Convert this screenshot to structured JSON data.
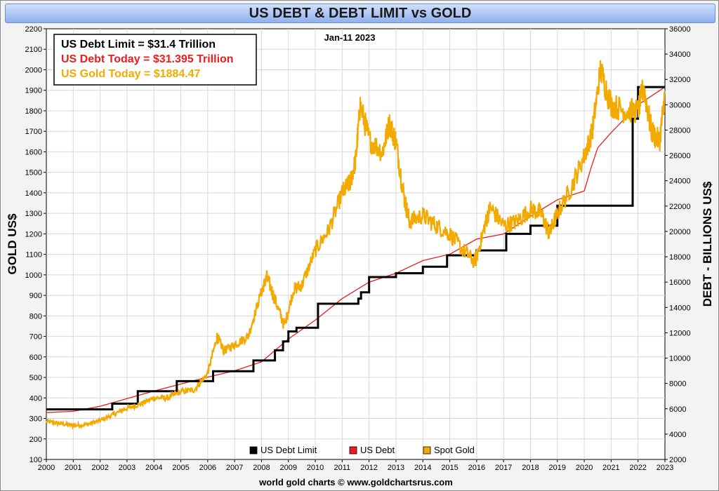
{
  "chart_data": {
    "type": "line",
    "title": "US DEBT & DEBT LIMIT vs GOLD",
    "date_label": "Jan-11  2023",
    "ylabel": "GOLD US$",
    "y2label": "DEBT - BILLIONS US$",
    "footer": "world gold charts © www.goldchartsrus.com",
    "x_ticks": [
      "2000",
      "2001",
      "2002",
      "2003",
      "2004",
      "2005",
      "2006",
      "2007",
      "2008",
      "2009",
      "2010",
      "2011",
      "2012",
      "2013",
      "2014",
      "2015",
      "2016",
      "2017",
      "2018",
      "2019",
      "2020",
      "2021",
      "2022",
      "2023"
    ],
    "y_ticks": [
      100,
      200,
      300,
      400,
      500,
      600,
      700,
      800,
      900,
      1000,
      1100,
      1200,
      1300,
      1400,
      1500,
      1600,
      1700,
      1800,
      1900,
      2000,
      2100,
      2200
    ],
    "y2_ticks": [
      2000,
      4000,
      6000,
      8000,
      10000,
      12000,
      14000,
      16000,
      18000,
      20000,
      22000,
      24000,
      26000,
      28000,
      30000,
      32000,
      34000,
      36000
    ],
    "xlim": [
      2000,
      2023
    ],
    "ylim": [
      100,
      2200
    ],
    "y2lim": [
      2000,
      36000
    ],
    "grid": true,
    "info_box": [
      {
        "text": "US Debt Limit    = $31.4 Trillion",
        "color": "#000000"
      },
      {
        "text": "US Debt Today = $31.395 Trillion",
        "color": "#ee1c1c"
      },
      {
        "text": "US Gold Today = $1884.47",
        "color": "#f2a900"
      }
    ],
    "legend_position": "bottom-right",
    "series": [
      {
        "name": "US Debt Limit",
        "color": "#000000",
        "axis": "right",
        "step": true,
        "x": [
          2000,
          2002.45,
          2003.4,
          2004.85,
          2006.2,
          2007.7,
          2008.5,
          2008.8,
          2009.0,
          2009.3,
          2010.1,
          2011.6,
          2011.7,
          2012.0,
          2013.0,
          2014.0,
          2014.9,
          2016.0,
          2017.1,
          2018.0,
          2019.0,
          2019.7,
          2021.8,
          2022.0,
          2023.0
        ],
        "values": [
          5950,
          6400,
          7384,
          8184,
          8965,
          9815,
          10615,
          11315,
          12104,
          12394,
          14294,
          14694,
          15194,
          16394,
          16699,
          17212,
          18113,
          18500,
          19809,
          20456,
          22030,
          22030,
          28900,
          31400,
          31400
        ]
      },
      {
        "name": "US Debt",
        "color": "#ee1c1c",
        "axis": "right",
        "step": false,
        "x": [
          2000,
          2001,
          2002,
          2003,
          2004,
          2005,
          2006,
          2007,
          2008,
          2009,
          2010,
          2011,
          2012,
          2013,
          2014,
          2015,
          2016,
          2017,
          2018,
          2019,
          2020,
          2020.25,
          2020.5,
          2021,
          2022,
          2023
        ],
        "values": [
          5700,
          5800,
          6200,
          6800,
          7400,
          7950,
          8500,
          9000,
          9700,
          11500,
          13000,
          14700,
          16000,
          16700,
          17700,
          18200,
          19400,
          19800,
          21200,
          22500,
          23200,
          25000,
          26600,
          27800,
          30000,
          31400
        ]
      },
      {
        "name": "Spot Gold",
        "color": "#f2a900",
        "axis": "left",
        "step": false,
        "x": [
          2000,
          2000.5,
          2001,
          2001.5,
          2002,
          2002.5,
          2003,
          2003.5,
          2004,
          2004.5,
          2005,
          2005.5,
          2006,
          2006.35,
          2006.6,
          2007,
          2007.5,
          2008,
          2008.2,
          2008.5,
          2008.85,
          2009.2,
          2009.5,
          2010,
          2010.5,
          2011,
          2011.3,
          2011.5,
          2011.67,
          2012,
          2012.5,
          2012.75,
          2013,
          2013.3,
          2013.5,
          2014,
          2014.5,
          2015,
          2015.5,
          2015.95,
          2016.3,
          2016.5,
          2017,
          2017.5,
          2018,
          2018.4,
          2018.7,
          2019,
          2019.5,
          2020,
          2020.3,
          2020.6,
          2021,
          2021.5,
          2022,
          2022.2,
          2022.5,
          2022.8,
          2023
        ],
        "values": [
          285,
          275,
          265,
          270,
          290,
          320,
          350,
          370,
          400,
          400,
          430,
          440,
          520,
          700,
          630,
          660,
          700,
          920,
          990,
          880,
          750,
          930,
          950,
          1120,
          1220,
          1400,
          1450,
          1560,
          1830,
          1660,
          1600,
          1740,
          1650,
          1380,
          1260,
          1290,
          1240,
          1200,
          1120,
          1060,
          1240,
          1330,
          1240,
          1260,
          1320,
          1300,
          1200,
          1300,
          1420,
          1580,
          1700,
          2000,
          1830,
          1800,
          1800,
          1920,
          1700,
          1650,
          1884
        ]
      }
    ]
  }
}
